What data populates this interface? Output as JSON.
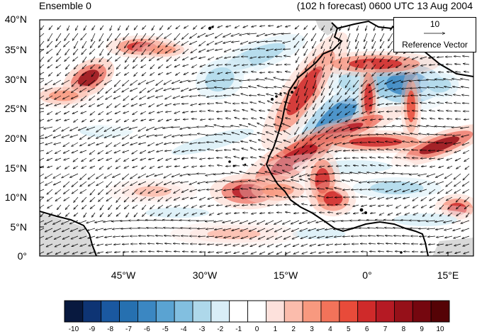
{
  "header": {
    "left_title": "Ensemble 0",
    "right_title": "(102 h forecast) 0600 UTC 13 Aug 2004"
  },
  "axes": {
    "y_ticks": [
      "40°N",
      "35°N",
      "30°N",
      "25°N",
      "20°N",
      "15°N",
      "10°N",
      "5°N",
      "0°"
    ],
    "x_ticks": [
      "45°W",
      "30°W",
      "15°W",
      "0°",
      "15°E"
    ]
  },
  "reference_vector": {
    "value": "10",
    "label": "Reference Vector"
  },
  "colorbar": {
    "labels": [
      "-10",
      "-9",
      "-8",
      "-7",
      "-6",
      "-5",
      "-4",
      "-3",
      "-2",
      "-1",
      "0",
      "1",
      "2",
      "3",
      "4",
      "5",
      "6",
      "7",
      "8",
      "9",
      "10"
    ],
    "colors": [
      "#08193f",
      "#0e3474",
      "#1a58a0",
      "#2670b0",
      "#3b87c2",
      "#5aa3d2",
      "#82bfe0",
      "#aed8ea",
      "#d9eef7",
      "#ffffff",
      "#ffffff",
      "#fde1dc",
      "#fbbcac",
      "#f8997f",
      "#f2735a",
      "#e84b3a",
      "#cf2a2a",
      "#b51a24",
      "#961019",
      "#75070f",
      "#550306"
    ]
  },
  "map": {
    "domain": {
      "lon_min": -60,
      "lon_max": 20,
      "lat_min": 0,
      "lat_max": 40
    },
    "land_color": "#d9d9d9",
    "coast_color": "#000000"
  }
}
